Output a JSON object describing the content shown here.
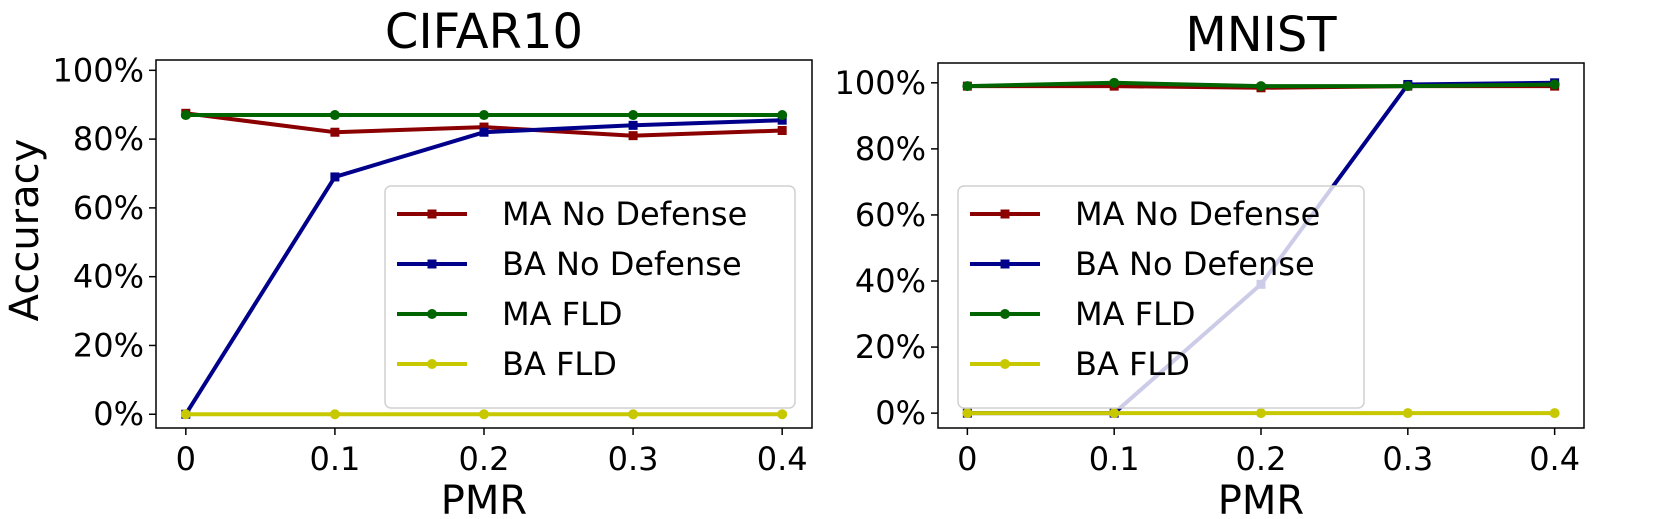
{
  "ylabel": "Accuracy",
  "chart_data": [
    {
      "type": "line",
      "title": "CIFAR10",
      "xlabel": "PMR",
      "ylabel": "Accuracy",
      "x": [
        0,
        0.1,
        0.2,
        0.3,
        0.4
      ],
      "x_tick_labels": [
        "0",
        "0.1",
        "0.2",
        "0.3",
        "0.4"
      ],
      "y_ticks": [
        0,
        20,
        40,
        60,
        80,
        100
      ],
      "y_tick_labels": [
        "0%",
        "20%",
        "40%",
        "60%",
        "80%",
        "100%"
      ],
      "ylim": [
        -4,
        103
      ],
      "xlim": [
        -0.02,
        0.42
      ],
      "legend": "center-right",
      "series": [
        {
          "name": "MA No Defense",
          "color": "#8b0000",
          "marker": "square",
          "values": [
            87.5,
            82,
            83.5,
            81,
            82.5
          ]
        },
        {
          "name": "BA No Defense",
          "color": "#00008b",
          "marker": "square",
          "values": [
            0,
            69,
            82,
            84,
            85.5
          ]
        },
        {
          "name": "MA FLD",
          "color": "#006400",
          "marker": "circle",
          "values": [
            87,
            87,
            87,
            87,
            87
          ]
        },
        {
          "name": "BA FLD",
          "color": "#c8c800",
          "marker": "circle",
          "values": [
            0,
            0,
            0,
            0,
            0
          ]
        }
      ]
    },
    {
      "type": "line",
      "title": "MNIST",
      "xlabel": "PMR",
      "ylabel": "",
      "x": [
        0,
        0.1,
        0.2,
        0.3,
        0.4
      ],
      "x_tick_labels": [
        "0",
        "0.1",
        "0.2",
        "0.3",
        "0.4"
      ],
      "y_ticks": [
        0,
        20,
        40,
        60,
        80,
        100
      ],
      "y_tick_labels": [
        "0%",
        "20%",
        "40%",
        "60%",
        "80%",
        "100%"
      ],
      "ylim": [
        -4.5,
        106
      ],
      "xlim": [
        -0.02,
        0.42
      ],
      "legend": "center-left",
      "series": [
        {
          "name": "MA No Defense",
          "color": "#8b0000",
          "marker": "square",
          "values": [
            99,
            99,
            98.5,
            99,
            99
          ]
        },
        {
          "name": "BA No Defense",
          "color": "#00008b",
          "marker": "square",
          "values": [
            0,
            0,
            39,
            99.5,
            100
          ]
        },
        {
          "name": "MA FLD",
          "color": "#006400",
          "marker": "circle",
          "values": [
            99,
            100,
            99,
            99,
            99.5
          ]
        },
        {
          "name": "BA FLD",
          "color": "#c8c800",
          "marker": "circle",
          "values": [
            0,
            0,
            0,
            0,
            0
          ]
        }
      ]
    }
  ]
}
